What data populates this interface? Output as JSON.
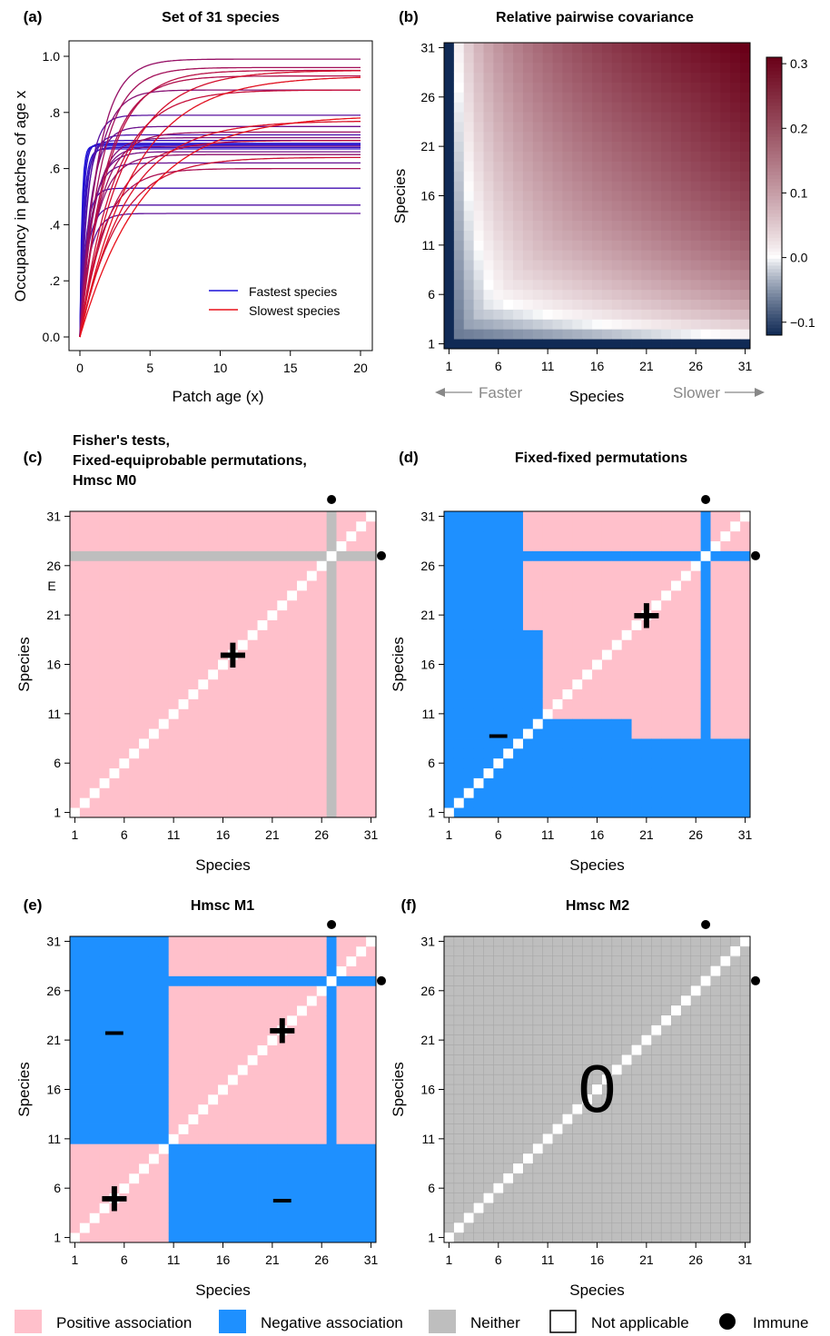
{
  "colors": {
    "positive": "#ffc0cb",
    "negative": "#1e90ff",
    "neither": "#bebebe",
    "not_applicable": "#ffffff",
    "immune": "#000000",
    "fast": "#1a10d8",
    "slow": "#e8101a",
    "cov_low": "#102a55",
    "cov_mid": "#ffffff",
    "cov_high": "#6a0018"
  },
  "legend": {
    "positive": "Positive association",
    "negative": "Negative association",
    "neither": "Neither",
    "not_applicable": "Not applicable",
    "immune": "Immune"
  },
  "chart_data": [
    {
      "panel": "(a)",
      "type": "line",
      "title": "Set of 31 species",
      "xlabel": "Patch age (x)",
      "ylabel": "Occupancy in patches of age x",
      "xlim": [
        0,
        20
      ],
      "ylim": [
        0,
        1
      ],
      "xticks": [
        "0",
        "5",
        "10",
        "15",
        "20"
      ],
      "yticks": [
        "0.0",
        ".2",
        ".4",
        ".6",
        ".8",
        "1.0"
      ],
      "legend_position": "bottom-right",
      "legend": [
        "Fastest species",
        "Slowest species"
      ],
      "x": [
        0,
        0.5,
        1,
        1.5,
        2,
        3,
        4,
        5,
        6,
        7,
        8,
        10,
        12,
        14,
        16,
        18,
        20
      ],
      "series_note": "31 curves, occupancy = plateau*(1-exp(-rate*x)), color from fastest (blue) to slowest (red)",
      "series": [
        {
          "plateau": 0.68,
          "rate": 7.0
        },
        {
          "plateau": 0.685,
          "rate": 5.5
        },
        {
          "plateau": 0.69,
          "rate": 4.5
        },
        {
          "plateau": 0.67,
          "rate": 3.8
        },
        {
          "plateau": 0.675,
          "rate": 3.2
        },
        {
          "plateau": 0.7,
          "rate": 2.7
        },
        {
          "plateau": 0.53,
          "rate": 2.4
        },
        {
          "plateau": 0.72,
          "rate": 2.1
        },
        {
          "plateau": 0.47,
          "rate": 1.9
        },
        {
          "plateau": 0.79,
          "rate": 1.7
        },
        {
          "plateau": 0.44,
          "rate": 1.55
        },
        {
          "plateau": 0.62,
          "rate": 1.4
        },
        {
          "plateau": 0.75,
          "rate": 1.3
        },
        {
          "plateau": 0.66,
          "rate": 1.2
        },
        {
          "plateau": 0.68,
          "rate": 1.1
        },
        {
          "plateau": 0.71,
          "rate": 1.0
        },
        {
          "plateau": 0.88,
          "rate": 0.92
        },
        {
          "plateau": 0.65,
          "rate": 0.85
        },
        {
          "plateau": 0.99,
          "rate": 0.78
        },
        {
          "plateau": 0.73,
          "rate": 0.72
        },
        {
          "plateau": 0.96,
          "rate": 0.66
        },
        {
          "plateau": 0.6,
          "rate": 0.6
        },
        {
          "plateau": 0.93,
          "rate": 0.55
        },
        {
          "plateau": 0.95,
          "rate": 0.5
        },
        {
          "plateau": 0.7,
          "rate": 0.45
        },
        {
          "plateau": 0.88,
          "rate": 0.41
        },
        {
          "plateau": 0.64,
          "rate": 0.37
        },
        {
          "plateau": 0.95,
          "rate": 0.33
        },
        {
          "plateau": 0.77,
          "rate": 0.3
        },
        {
          "plateau": 0.93,
          "rate": 0.26
        },
        {
          "plateau": 0.79,
          "rate": 0.22
        }
      ]
    },
    {
      "panel": "(b)",
      "type": "heatmap",
      "title": "Relative pairwise covariance",
      "xlabel": "Species",
      "ylabel": "Species",
      "ticks": [
        "1",
        "6",
        "11",
        "16",
        "21",
        "26",
        "31"
      ],
      "colorbar_ticks": [
        "0.3",
        "0.2",
        "0.1",
        "0.0",
        "−0.1"
      ],
      "colorbar_range": [
        -0.12,
        0.31
      ],
      "annotations": {
        "left": "Faster",
        "right": "Slower"
      },
      "model": "cov(i,j) increases with species index; minimum about -0.12 at (1,1), maximum about 0.31 at (31,31), near zero around species 9-11"
    },
    {
      "panel": "(c)",
      "type": "heatmap",
      "title_lines": [
        "Fisher's tests,",
        "Fixed-equiprobable permutations,",
        "Hmsc M0"
      ],
      "xlabel": "Species",
      "ylabel": "Species",
      "ticks": [
        "1",
        "6",
        "11",
        "16",
        "21",
        "26",
        "31"
      ],
      "n": 31,
      "immune": [
        27
      ],
      "annotation": "E",
      "markers": [
        {
          "symbol": "+",
          "x": 17,
          "y": 17
        }
      ],
      "cells": "all pairs positive; row/column 27 neither; diagonal not applicable"
    },
    {
      "panel": "(d)",
      "type": "heatmap",
      "title": "Fixed-fixed permutations",
      "xlabel": "Species",
      "ylabel": "Species",
      "ticks": [
        "1",
        "6",
        "11",
        "16",
        "21",
        "26",
        "31"
      ],
      "n": 31,
      "immune": [
        27
      ],
      "markers": [
        {
          "symbol": "+",
          "x": 21,
          "y": 21
        },
        {
          "symbol": "–",
          "x": 6,
          "y": 9
        }
      ],
      "negative_boundary": [
        9,
        9,
        9,
        9,
        9,
        9,
        9,
        9,
        11,
        11,
        11,
        11,
        11,
        11,
        11,
        11,
        11,
        11,
        11,
        9,
        9,
        9,
        9,
        9,
        9,
        9,
        9,
        9,
        9,
        9,
        9
      ],
      "cells": "positive above boundary, negative below; row/column 27 negative"
    },
    {
      "panel": "(e)",
      "type": "heatmap",
      "title": "Hmsc M1",
      "xlabel": "Species",
      "ylabel": "Species",
      "ticks": [
        "1",
        "6",
        "11",
        "16",
        "21",
        "26",
        "31"
      ],
      "n": 31,
      "immune": [
        27
      ],
      "markers": [
        {
          "symbol": "+",
          "x": 22,
          "y": 22
        },
        {
          "symbol": "+",
          "x": 5,
          "y": 5
        },
        {
          "symbol": "–",
          "x": 5,
          "y": 22
        },
        {
          "symbol": "–",
          "x": 22,
          "y": 5
        }
      ],
      "cells": "positive within groups 1-10 and 11-31, negative between; row/column 27 negative"
    },
    {
      "panel": "(f)",
      "type": "heatmap",
      "title": "Hmsc M2",
      "xlabel": "Species",
      "ylabel": "Species",
      "ticks": [
        "1",
        "6",
        "11",
        "16",
        "21",
        "26",
        "31"
      ],
      "n": 31,
      "immune": [
        27
      ],
      "markers": [
        {
          "symbol": "0",
          "x": 16,
          "y": 16
        }
      ],
      "cells": "all pairs neither; diagonal not applicable"
    }
  ]
}
